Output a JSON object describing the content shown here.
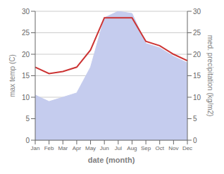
{
  "chart_data": {
    "type": "line",
    "xlabel": "date (month)",
    "ylabel": "max temp (C)",
    "y2label": "med. precipitation (kg/m2)",
    "categories": [
      "Jan",
      "Feb",
      "Mar",
      "Apr",
      "May",
      "Jun",
      "Jul",
      "Aug",
      "Sep",
      "Oct",
      "Nov",
      "Dec"
    ],
    "series": [
      {
        "type": "area",
        "color": "#c5ccee",
        "axis": "y2",
        "values": [
          10.5,
          9.0,
          10.0,
          11.0,
          17.0,
          28.5,
          30.0,
          29.5,
          22.5,
          21.5,
          19.5,
          18.0
        ]
      },
      {
        "type": "line",
        "color": "#cc3333",
        "values": [
          17.0,
          15.5,
          16.0,
          17.0,
          21.0,
          28.5,
          28.5,
          28.5,
          23.0,
          22.0,
          20.0,
          18.5
        ]
      }
    ],
    "ylim": [
      0,
      30
    ],
    "yticks": [
      0,
      5,
      10,
      15,
      20,
      25,
      30
    ],
    "y2lim": [
      0,
      30
    ],
    "y2ticks": [
      0,
      5,
      10,
      15,
      20,
      25,
      30
    ],
    "grid": true
  }
}
